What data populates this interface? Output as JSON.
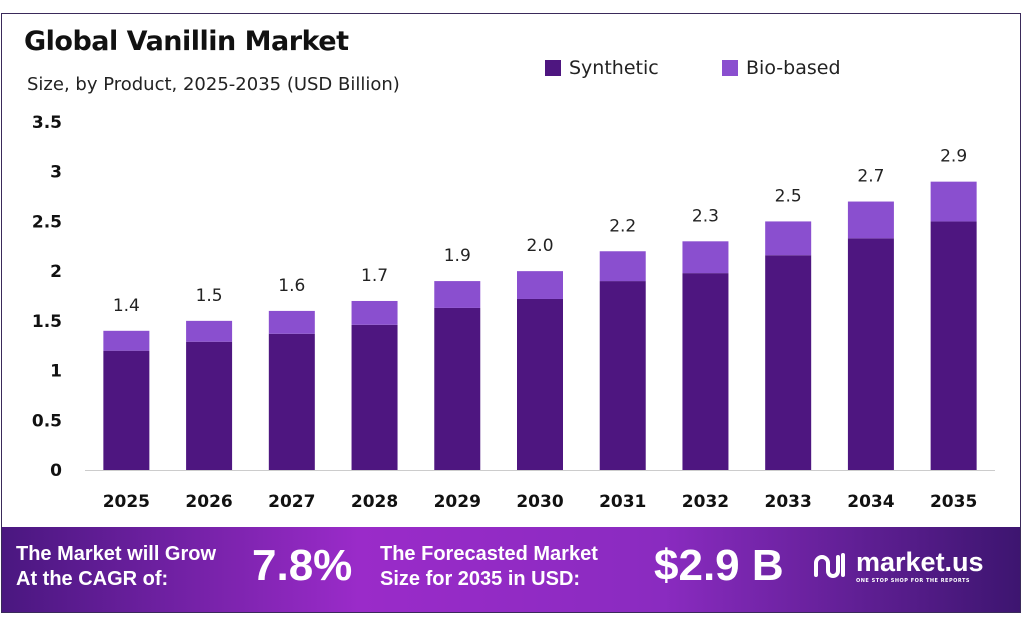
{
  "chart_data": {
    "type": "bar",
    "stacked": true,
    "title": "Global Vanillin Market",
    "subtitle": "Size, by Product, 2025-2035 (USD Billion)",
    "categories": [
      "2025",
      "2026",
      "2027",
      "2028",
      "2029",
      "2030",
      "2031",
      "2032",
      "2033",
      "2034",
      "2035"
    ],
    "series": [
      {
        "name": "Synthetic",
        "color": "#4e1680",
        "values": [
          1.2,
          1.29,
          1.37,
          1.46,
          1.63,
          1.72,
          1.9,
          1.98,
          2.16,
          2.33,
          2.5
        ]
      },
      {
        "name": "Bio-based",
        "color": "#8a4fcf",
        "values": [
          0.2,
          0.21,
          0.23,
          0.24,
          0.27,
          0.28,
          0.3,
          0.32,
          0.34,
          0.37,
          0.4
        ]
      }
    ],
    "totals": [
      "1.4",
      "1.5",
      "1.6",
      "1.7",
      "1.9",
      "2.0",
      "2.2",
      "2.3",
      "2.5",
      "2.7",
      "2.9"
    ],
    "ylim": [
      0,
      3.5
    ],
    "yticks": [
      "0",
      "0.5",
      "1",
      "1.5",
      "2",
      "2.5",
      "3",
      "3.5"
    ],
    "grid": false,
    "legend": "top-right"
  },
  "banner": {
    "cagr_label_1": "The Market will Grow",
    "cagr_label_2": "At the CAGR of:",
    "cagr_value": "7.8%",
    "forecast_label_1": "The Forecasted Market",
    "forecast_label_2": "Size for 2035 in USD:",
    "forecast_value": "$2.9 B",
    "logo_name": "market.us",
    "logo_tagline": "ONE STOP SHOP FOR THE REPORTS"
  }
}
